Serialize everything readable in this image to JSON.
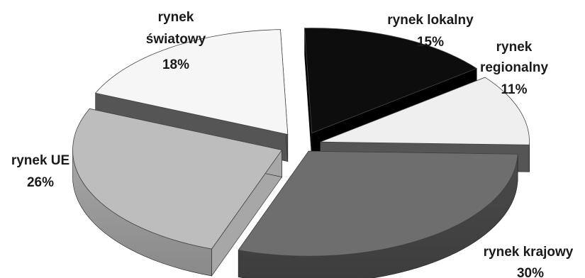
{
  "chart_data": {
    "type": "pie",
    "style": "3d-exploded",
    "title": "",
    "legend": "none",
    "slices": [
      {
        "name": "rynek lokalny",
        "value": 15,
        "label": "15%",
        "color": "#0d0d0d",
        "side": "#000000"
      },
      {
        "name": "rynek regionalny",
        "value": 11,
        "label": "11%",
        "color": "#efefef",
        "side": "#555555"
      },
      {
        "name": "rynek krajowy",
        "value": 30,
        "label": "30%",
        "color": "#6e6e6e",
        "side": "#4a4a4a"
      },
      {
        "name": "rynek UE",
        "value": 26,
        "label": "26%",
        "color": "#bdbdbd",
        "side": "#a7a7a7"
      },
      {
        "name": "rynek światowy",
        "value": 18,
        "label": "18%",
        "color": "#f6f6f6",
        "side": "#555555"
      }
    ]
  }
}
